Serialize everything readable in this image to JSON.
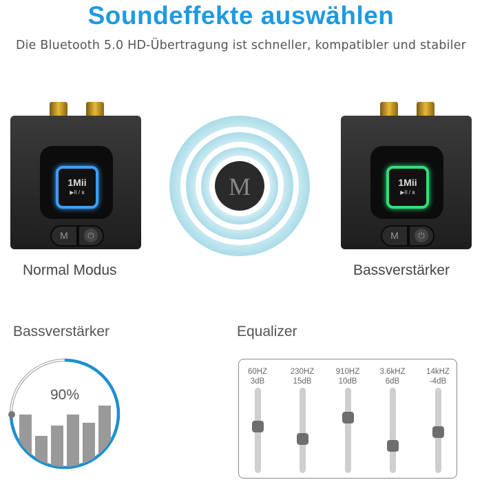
{
  "header": {
    "title": "Soundeffekte auswählen",
    "subtitle": "Die Bluetooth 5.0 HD-Übertragung ist schneller, kompatibler und stabiler"
  },
  "devices": [
    {
      "label": "Normal Modus",
      "glow_color": "#3aa0ff",
      "logo": "1Mii",
      "controls": "▶II / ʙ",
      "button_m": "M"
    },
    {
      "label": "Bassverstärker",
      "glow_color": "#2fe07a",
      "logo": "1Mii",
      "controls": "▶II / ʙ",
      "button_m": "M"
    }
  ],
  "center_button": {
    "label": "M"
  },
  "bass": {
    "title": "Bassverstärker",
    "percent_label": "90%",
    "accent": "#1e8fd0"
  },
  "equalizer": {
    "title": "Equalizer",
    "bands": [
      {
        "freq": "60HZ",
        "gain": "3dB",
        "level": 0.45
      },
      {
        "freq": "230HZ",
        "gain": "15dB",
        "level": 0.6
      },
      {
        "freq": "910HZ",
        "gain": "10dB",
        "level": 0.35
      },
      {
        "freq": "3.6kHZ",
        "gain": "6dB",
        "level": 0.68
      },
      {
        "freq": "14kHZ",
        "gain": "-4dB",
        "level": 0.52
      }
    ]
  }
}
